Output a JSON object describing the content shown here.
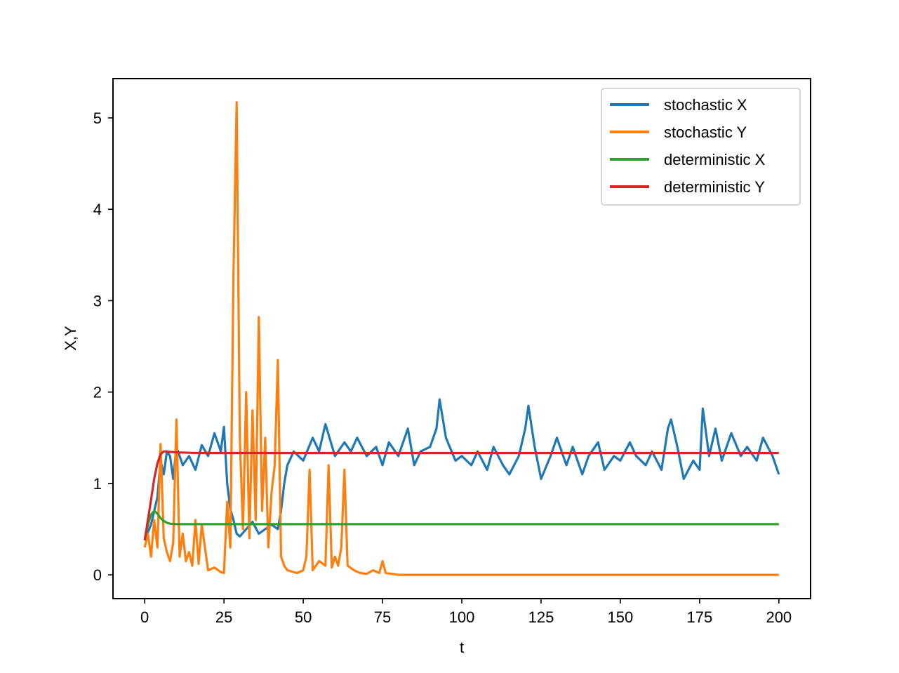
{
  "chart_data": {
    "type": "line",
    "title": "",
    "xlabel": "t",
    "ylabel": "X,Y",
    "xlim": [
      -10,
      210
    ],
    "ylim": [
      -0.26,
      5.43
    ],
    "xticks": [
      0,
      25,
      50,
      75,
      100,
      125,
      150,
      175,
      200
    ],
    "xtick_labels": [
      "0",
      "25",
      "50",
      "75",
      "100",
      "125",
      "150",
      "175",
      "200"
    ],
    "yticks": [
      0,
      1,
      2,
      3,
      4,
      5
    ],
    "ytick_labels": [
      "0",
      "1",
      "2",
      "3",
      "4",
      "5"
    ],
    "grid": false,
    "legend_position": "top-right",
    "series": [
      {
        "name": "stochastic X",
        "color": "#1f77b4",
        "x": [
          0,
          2,
          4,
          5,
          6,
          7,
          8,
          9,
          10,
          12,
          14,
          16,
          18,
          20,
          22,
          24,
          25,
          26,
          27,
          28,
          29,
          30,
          32,
          34,
          36,
          38,
          40,
          42,
          43,
          44,
          45,
          47,
          50,
          53,
          55,
          57,
          60,
          63,
          65,
          67,
          70,
          73,
          75,
          77,
          80,
          83,
          85,
          87,
          90,
          92,
          93,
          95,
          98,
          100,
          103,
          105,
          108,
          110,
          113,
          115,
          118,
          120,
          121,
          123,
          125,
          128,
          130,
          133,
          135,
          138,
          140,
          143,
          145,
          148,
          150,
          153,
          155,
          158,
          160,
          163,
          165,
          166,
          168,
          170,
          173,
          175,
          176,
          178,
          180,
          182,
          185,
          188,
          190,
          193,
          195,
          198,
          200
        ],
        "y": [
          0.38,
          0.55,
          0.85,
          1.25,
          1.1,
          1.35,
          1.3,
          1.05,
          1.4,
          1.2,
          1.3,
          1.15,
          1.42,
          1.3,
          1.55,
          1.35,
          1.62,
          1.0,
          0.72,
          0.6,
          0.45,
          0.42,
          0.5,
          0.58,
          0.45,
          0.5,
          0.55,
          0.5,
          0.7,
          1.0,
          1.2,
          1.35,
          1.25,
          1.5,
          1.35,
          1.65,
          1.3,
          1.45,
          1.35,
          1.5,
          1.3,
          1.4,
          1.2,
          1.45,
          1.3,
          1.6,
          1.2,
          1.35,
          1.4,
          1.6,
          1.92,
          1.5,
          1.25,
          1.3,
          1.2,
          1.35,
          1.15,
          1.4,
          1.2,
          1.1,
          1.3,
          1.6,
          1.85,
          1.4,
          1.05,
          1.3,
          1.5,
          1.2,
          1.4,
          1.1,
          1.3,
          1.45,
          1.15,
          1.3,
          1.25,
          1.45,
          1.3,
          1.2,
          1.35,
          1.15,
          1.6,
          1.7,
          1.4,
          1.05,
          1.25,
          1.15,
          1.82,
          1.3,
          1.6,
          1.25,
          1.55,
          1.3,
          1.4,
          1.25,
          1.5,
          1.3,
          1.1
        ]
      },
      {
        "name": "stochastic Y",
        "color": "#ff7f0e",
        "x": [
          0,
          1,
          2,
          3,
          4,
          5,
          6,
          7,
          8,
          9,
          10,
          11,
          12,
          13,
          14,
          15,
          16,
          17,
          18,
          20,
          22,
          24,
          25,
          26,
          27,
          28,
          29,
          30,
          31,
          32,
          33,
          34,
          35,
          36,
          37,
          38,
          39,
          40,
          41,
          42,
          43,
          44,
          45,
          48,
          50,
          51,
          52,
          53,
          55,
          57,
          58,
          59,
          60,
          61,
          62,
          63,
          64,
          66,
          68,
          70,
          72,
          74,
          75,
          76,
          78,
          80,
          100,
          150,
          200
        ],
        "y": [
          0.3,
          0.45,
          0.2,
          0.6,
          0.3,
          1.43,
          0.4,
          0.25,
          0.15,
          0.35,
          1.7,
          0.2,
          0.45,
          0.15,
          0.25,
          0.1,
          0.6,
          0.12,
          0.55,
          0.05,
          0.08,
          0.03,
          0.02,
          0.8,
          0.3,
          3.3,
          5.17,
          1.5,
          0.5,
          2.0,
          0.4,
          1.8,
          0.6,
          2.82,
          0.7,
          1.5,
          0.3,
          0.9,
          1.2,
          2.35,
          0.2,
          0.1,
          0.05,
          0.02,
          0.05,
          0.2,
          1.15,
          0.05,
          0.15,
          0.1,
          1.2,
          0.08,
          0.2,
          0.1,
          0.3,
          1.15,
          0.1,
          0.05,
          0.02,
          0.01,
          0.05,
          0.02,
          0.15,
          0.02,
          0.01,
          0.0,
          0.0,
          0.0,
          0.0
        ]
      },
      {
        "name": "deterministic X",
        "color": "#2ca02c",
        "x": [
          0,
          1,
          2,
          3,
          4,
          5,
          6,
          7,
          8,
          10,
          15,
          20,
          50,
          100,
          150,
          200
        ],
        "y": [
          0.38,
          0.55,
          0.66,
          0.7,
          0.67,
          0.62,
          0.59,
          0.57,
          0.56,
          0.555,
          0.555,
          0.555,
          0.555,
          0.555,
          0.555,
          0.555
        ]
      },
      {
        "name": "deterministic Y",
        "color": "#d62728",
        "x": [
          0,
          1,
          2,
          3,
          4,
          5,
          6,
          7,
          8,
          10,
          15,
          20,
          50,
          100,
          150,
          200
        ],
        "y": [
          0.38,
          0.6,
          0.82,
          1.05,
          1.22,
          1.32,
          1.35,
          1.35,
          1.345,
          1.34,
          1.335,
          1.333,
          1.333,
          1.333,
          1.333,
          1.333
        ]
      }
    ]
  }
}
